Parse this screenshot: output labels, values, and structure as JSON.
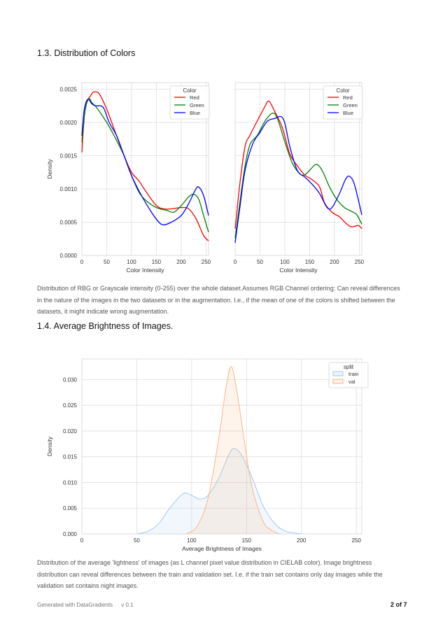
{
  "sections": [
    {
      "heading": "1.3. Distribution of Colors",
      "description": "Distribution of RBG or Grayscale intensity (0-255) over the whole dataset.Assumes RGB Channel ordering: Can reveal differences in the nature of the images in the two datasets or in the augmentation. I.e., if the mean of one of the colors is shifted between the datasets, it might indicate wrong augmentation."
    },
    {
      "heading": "1.4. Average Brightness of Images.",
      "description": "Distribution of the average 'lightness' of images (as L channel pixel value distribution in CIELAB color). Image brightness distribution can reveal differences between the train and validation set. I.e. if the train set contains only day images while the validation set contains night images."
    }
  ],
  "footer": {
    "generated": "Generated with DataGradients",
    "version": "v 0.1",
    "page": "2 of 7"
  },
  "chart_data": [
    {
      "type": "line",
      "xlabel": "Color Intensity",
      "ylabel": "Density",
      "xlim": [
        0,
        255
      ],
      "ylim": [
        0,
        0.0026
      ],
      "xticks": [
        0,
        50,
        100,
        150,
        200,
        250
      ],
      "yticks": [
        0.0,
        0.0005,
        0.001,
        0.0015,
        0.002,
        0.0025
      ],
      "ytick_labels": [
        "0.0000",
        "0.0005",
        "0.0010",
        "0.0015",
        "0.0020",
        "0.0025"
      ],
      "grid": true,
      "legend_title": "Color",
      "legend_position": "top-right",
      "series": [
        {
          "name": "Red",
          "color": "#ff0000",
          "x": [
            0,
            5,
            10,
            20,
            25,
            35,
            50,
            65,
            85,
            100,
            115,
            130,
            150,
            165,
            180,
            200,
            215,
            230,
            245,
            255
          ],
          "y": [
            0.00155,
            0.0021,
            0.0023,
            0.00243,
            0.00246,
            0.00243,
            0.0022,
            0.0019,
            0.0015,
            0.00125,
            0.00112,
            0.00095,
            0.00075,
            0.0007,
            0.0007,
            0.00072,
            0.0007,
            0.00055,
            0.0003,
            0.00022
          ]
        },
        {
          "name": "Green",
          "color": "#008000",
          "x": [
            0,
            5,
            10,
            15,
            20,
            30,
            50,
            65,
            85,
            100,
            115,
            130,
            150,
            170,
            185,
            200,
            215,
            225,
            235,
            245,
            255
          ],
          "y": [
            0.0017,
            0.0021,
            0.0023,
            0.00236,
            0.0023,
            0.00222,
            0.002,
            0.0018,
            0.0015,
            0.0012,
            0.00095,
            0.00082,
            0.00072,
            0.00068,
            0.00065,
            0.00075,
            0.00088,
            0.00092,
            0.00085,
            0.0006,
            0.00035
          ]
        },
        {
          "name": "Blue",
          "color": "#0000ff",
          "x": [
            0,
            5,
            12,
            20,
            28,
            38,
            45,
            55,
            70,
            85,
            100,
            120,
            140,
            155,
            165,
            180,
            200,
            215,
            228,
            235,
            245,
            255
          ],
          "y": [
            0.0018,
            0.0022,
            0.00235,
            0.00228,
            0.00225,
            0.00225,
            0.0022,
            0.002,
            0.0018,
            0.0015,
            0.0012,
            0.0009,
            0.00065,
            0.0005,
            0.00046,
            0.0005,
            0.0006,
            0.00078,
            0.00098,
            0.00103,
            0.0009,
            0.0006
          ]
        }
      ]
    },
    {
      "type": "line",
      "xlabel": "Color Intensity",
      "xlim": [
        0,
        255
      ],
      "ylim": [
        0,
        0.0026
      ],
      "xticks": [
        0,
        50,
        100,
        150,
        200,
        250
      ],
      "yticks": [
        0.0,
        0.0005,
        0.001,
        0.0015,
        0.002,
        0.0025
      ],
      "grid": true,
      "legend_title": "Color",
      "legend_position": "top-right",
      "series": [
        {
          "name": "Red",
          "color": "#ff0000",
          "x": [
            0,
            10,
            20,
            30,
            45,
            60,
            68,
            80,
            95,
            110,
            125,
            140,
            155,
            170,
            180,
            195,
            210,
            225,
            235,
            248,
            255
          ],
          "y": [
            0.0004,
            0.00111,
            0.00164,
            0.00181,
            0.00203,
            0.00224,
            0.00232,
            0.00216,
            0.00192,
            0.00153,
            0.00135,
            0.00121,
            0.00114,
            0.00103,
            0.00079,
            0.00065,
            0.00058,
            0.00047,
            0.00043,
            0.00045,
            0.0004
          ]
        },
        {
          "name": "Green",
          "color": "#008000",
          "x": [
            0,
            10,
            20,
            30,
            45,
            60,
            75,
            85,
            100,
            115,
            130,
            140,
            150,
            163,
            175,
            190,
            205,
            220,
            235,
            245,
            255
          ],
          "y": [
            0.00026,
            0.00082,
            0.00135,
            0.00167,
            0.00181,
            0.00202,
            0.00214,
            0.00206,
            0.00171,
            0.00139,
            0.00123,
            0.00121,
            0.00128,
            0.00137,
            0.00128,
            0.00103,
            0.00084,
            0.00072,
            0.00066,
            0.00061,
            0.00047
          ]
        },
        {
          "name": "Blue",
          "color": "#0000ff",
          "x": [
            0,
            10,
            20,
            35,
            50,
            65,
            80,
            92,
            100,
            110,
            125,
            140,
            155,
            170,
            185,
            195,
            210,
            222,
            230,
            240,
            255
          ],
          "y": [
            0.00019,
            0.00075,
            0.00128,
            0.00167,
            0.00185,
            0.00202,
            0.00206,
            0.00209,
            0.00199,
            0.00164,
            0.00128,
            0.00118,
            0.00107,
            0.00093,
            0.00072,
            0.00072,
            0.00093,
            0.00114,
            0.00119,
            0.00107,
            0.00061
          ]
        }
      ]
    },
    {
      "type": "area",
      "xlabel": "Average Brightness of Images",
      "ylabel": "Density",
      "xlim": [
        0,
        255
      ],
      "ylim": [
        0,
        0.034
      ],
      "xticks": [
        0,
        50,
        100,
        150,
        200,
        250
      ],
      "yticks": [
        0.0,
        0.005,
        0.01,
        0.015,
        0.02,
        0.025,
        0.03
      ],
      "ytick_labels": [
        "0.000",
        "0.005",
        "0.010",
        "0.015",
        "0.020",
        "0.025",
        "0.030"
      ],
      "grid": true,
      "legend_title": "split",
      "legend_position": "top-right",
      "series": [
        {
          "name": "train",
          "color": "#a1c9f4",
          "x": [
            50,
            60,
            70,
            80,
            92,
            100,
            107,
            115,
            125,
            133,
            138,
            145,
            155,
            165,
            175,
            185,
            200
          ],
          "y": [
            0,
            0.0005,
            0.002,
            0.005,
            0.0078,
            0.0075,
            0.0068,
            0.0075,
            0.011,
            0.015,
            0.0166,
            0.0155,
            0.011,
            0.0055,
            0.0022,
            0.0006,
            0
          ]
        },
        {
          "name": "val",
          "color": "#ffb482",
          "x": [
            95,
            105,
            115,
            125,
            131,
            136,
            141,
            148,
            155,
            165,
            172,
            180
          ],
          "y": [
            0,
            0.0015,
            0.007,
            0.019,
            0.028,
            0.0325,
            0.028,
            0.018,
            0.009,
            0.0025,
            0.0008,
            0
          ]
        }
      ]
    }
  ]
}
